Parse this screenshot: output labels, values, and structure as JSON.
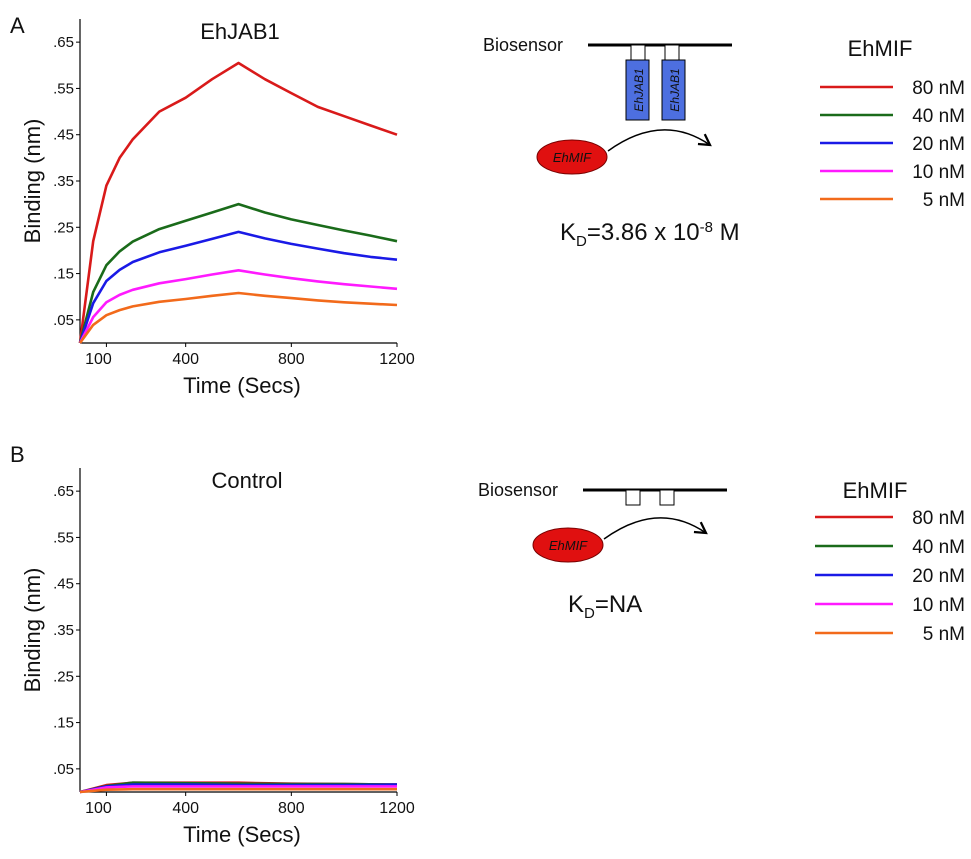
{
  "chart_data": [
    {
      "type": "line",
      "label": "A",
      "title": "EhJAB1",
      "xlabel": "Time (Secs)",
      "ylabel": "Binding (nm)",
      "legend_title": "EhMIF",
      "x": [
        0,
        50,
        100,
        150,
        200,
        300,
        400,
        500,
        600,
        700,
        800,
        900,
        1000,
        1100,
        1200
      ],
      "xlim": [
        0,
        1200
      ],
      "xticks": [
        100,
        400,
        800,
        1200
      ],
      "ylim": [
        0,
        0.7
      ],
      "yticks": [
        {
          "value": 0.05,
          "label": ".05"
        },
        {
          "value": 0.15,
          "label": ".15"
        },
        {
          "value": 0.25,
          "label": ".25"
        },
        {
          "value": 0.35,
          "label": ".35"
        },
        {
          "value": 0.45,
          "label": ".45"
        },
        {
          "value": 0.55,
          "label": ".55"
        },
        {
          "value": 0.65,
          "label": ".65"
        }
      ],
      "series": [
        {
          "name": "80 nM",
          "color": "#d91a1a",
          "values": [
            0,
            0.22,
            0.34,
            0.4,
            0.44,
            0.5,
            0.53,
            0.57,
            0.605,
            0.57,
            0.54,
            0.51,
            0.49,
            0.47,
            0.45
          ]
        },
        {
          "name": "40 nM",
          "color": "#1a6b1a",
          "values": [
            0,
            0.11,
            0.168,
            0.198,
            0.219,
            0.246,
            0.264,
            0.282,
            0.3,
            0.282,
            0.267,
            0.255,
            0.243,
            0.232,
            0.22
          ]
        },
        {
          "name": "20 nM",
          "color": "#1a1ae6",
          "values": [
            0,
            0.086,
            0.134,
            0.158,
            0.175,
            0.196,
            0.21,
            0.225,
            0.24,
            0.226,
            0.214,
            0.204,
            0.194,
            0.186,
            0.18
          ]
        },
        {
          "name": "10 nM",
          "color": "#ff1aff",
          "values": [
            0,
            0.056,
            0.088,
            0.104,
            0.115,
            0.129,
            0.138,
            0.148,
            0.157,
            0.148,
            0.14,
            0.133,
            0.127,
            0.122,
            0.117
          ]
        },
        {
          "name": "5 nM",
          "color": "#f26a1b",
          "values": [
            0,
            0.039,
            0.06,
            0.071,
            0.079,
            0.089,
            0.095,
            0.102,
            0.108,
            0.102,
            0.097,
            0.092,
            0.088,
            0.085,
            0.082
          ]
        }
      ]
    },
    {
      "type": "line",
      "label": "B",
      "title": "Control",
      "xlabel": "Time (Secs)",
      "ylabel": "Binding (nm)",
      "legend_title": "EhMIF",
      "x": [
        0,
        100,
        200,
        400,
        600,
        800,
        1000,
        1200
      ],
      "xlim": [
        0,
        1200
      ],
      "xticks": [
        100,
        400,
        800,
        1200
      ],
      "ylim": [
        0,
        0.7
      ],
      "yticks": [
        {
          "value": 0.05,
          "label": ".05"
        },
        {
          "value": 0.15,
          "label": ".15"
        },
        {
          "value": 0.25,
          "label": ".25"
        },
        {
          "value": 0.35,
          "label": ".35"
        },
        {
          "value": 0.45,
          "label": ".45"
        },
        {
          "value": 0.55,
          "label": ".55"
        },
        {
          "value": 0.65,
          "label": ".65"
        }
      ],
      "series": [
        {
          "name": "80 nM",
          "color": "#d91a1a",
          "values": [
            0,
            0.015,
            0.02,
            0.02,
            0.02,
            0.018,
            0.017,
            0.016
          ]
        },
        {
          "name": "40 nM",
          "color": "#1a6b1a",
          "values": [
            0,
            0.013,
            0.02,
            0.019,
            0.018,
            0.017,
            0.017,
            0.016
          ]
        },
        {
          "name": "20 nM",
          "color": "#1a1ae6",
          "values": [
            0,
            0.012,
            0.016,
            0.016,
            0.015,
            0.015,
            0.015,
            0.016
          ]
        },
        {
          "name": "10 nM",
          "color": "#ff1aff",
          "values": [
            0,
            0.01,
            0.012,
            0.012,
            0.012,
            0.012,
            0.012,
            0.012
          ]
        },
        {
          "name": "5 nM",
          "color": "#f26a1b",
          "values": [
            0,
            0.005,
            0.006,
            0.006,
            0.006,
            0.006,
            0.006,
            0.006
          ]
        }
      ]
    }
  ],
  "diagrams": [
    {
      "biosensor": "Biosensor",
      "receptors": [
        "EhJAB1",
        "EhJAB1"
      ],
      "ligand": "EhMIF",
      "kd": [
        "K",
        "D",
        "=3.86 x 10",
        "-8",
        " M"
      ]
    },
    {
      "biosensor": "Biosensor",
      "ligand": "EhMIF",
      "kd": [
        "K",
        "D",
        "=NA"
      ]
    }
  ]
}
